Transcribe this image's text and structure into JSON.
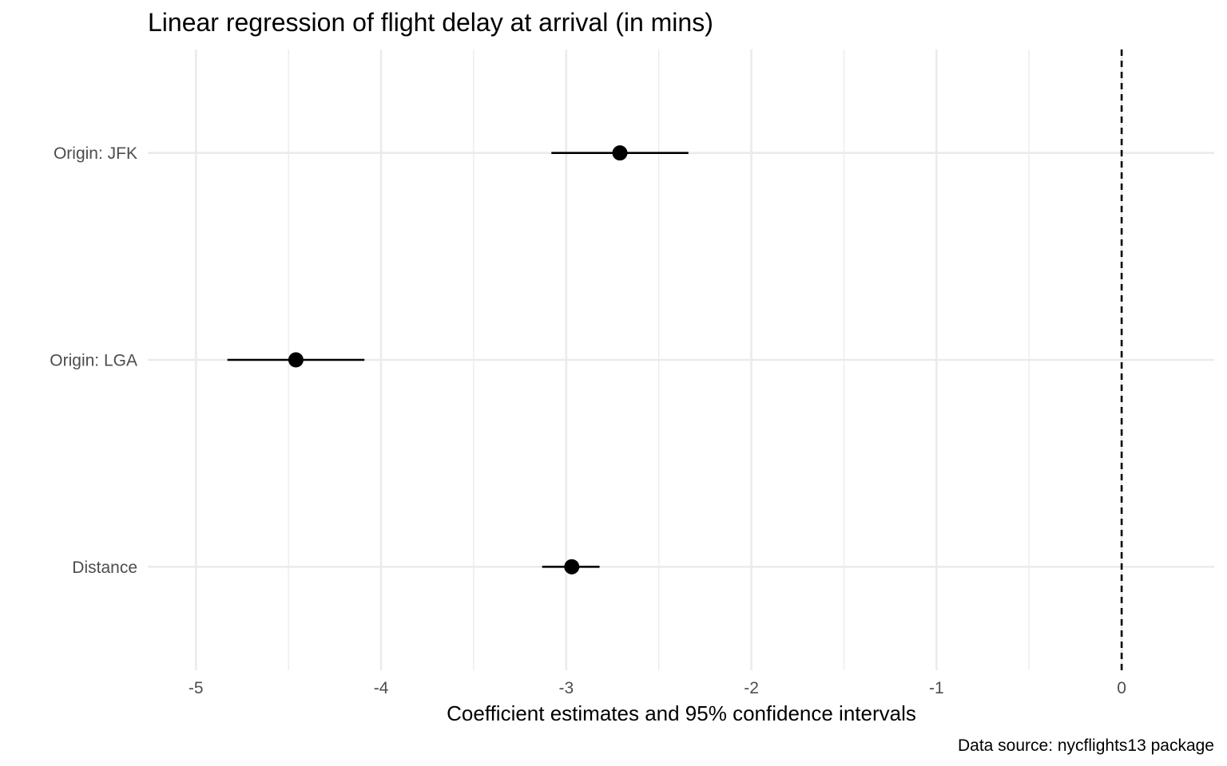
{
  "chart_data": {
    "type": "scatter",
    "title": "Linear regression of flight delay at arrival (in mins)",
    "xlabel": "Coefficient estimates and 95% confidence intervals",
    "ylabel": "",
    "caption": "Data source: nycflights13 package",
    "xlim": [
      -5.26,
      0.5
    ],
    "x_ticks": [
      -5,
      -4,
      -3,
      -2,
      -1,
      0
    ],
    "x_tick_labels": [
      "-5",
      "-4",
      "-3",
      "-2",
      "-1",
      "0"
    ],
    "x_minor_ticks": [
      -4.5,
      -3.5,
      -2.5,
      -1.5,
      -0.5
    ],
    "categories": [
      "Origin: JFK",
      "Origin: LGA",
      "Distance"
    ],
    "estimates": [
      -2.71,
      -4.46,
      -2.97
    ],
    "ci_low": [
      -3.08,
      -4.83,
      -3.13
    ],
    "ci_high": [
      -2.34,
      -4.09,
      -2.82
    ],
    "reference_line": 0,
    "grid": true,
    "legend": "none"
  }
}
